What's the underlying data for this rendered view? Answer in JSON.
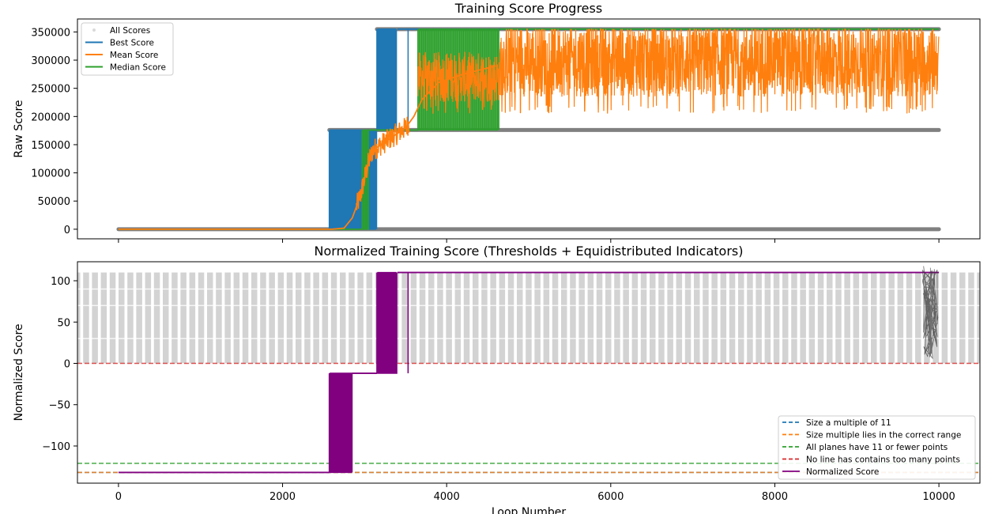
{
  "chart_data": [
    {
      "type": "line",
      "title": "Training Score Progress",
      "xlabel": "",
      "ylabel": "Raw Score",
      "xlim": [
        -500,
        10500
      ],
      "ylim": [
        -17000,
        373000
      ],
      "x_ticks": [
        0,
        2000,
        4000,
        6000,
        8000,
        10000
      ],
      "x_tick_labels_visible": false,
      "y_ticks": [
        0,
        50000,
        100000,
        150000,
        200000,
        250000,
        300000,
        350000
      ],
      "y_tick_labels": [
        "0",
        "50000",
        "100000",
        "150000",
        "200000",
        "250000",
        "300000",
        "350000"
      ],
      "grid": false,
      "legend_position": "top-left",
      "legend": [
        "All Scores",
        "Best Score",
        "Mean Score",
        "Median Score"
      ],
      "colors": {
        "all": "#808080",
        "best": "#1f77b4",
        "mean": "#ff7f0e",
        "median": "#2ca02c"
      },
      "series": [
        {
          "name": "All Scores",
          "style": "scatter",
          "levels": [
            0,
            176000,
            355000
          ],
          "x_range": [
            0,
            10000
          ]
        },
        {
          "name": "Best Score",
          "segments": [
            {
              "x": [
                0,
                2570
              ],
              "y": [
                0,
                0
              ]
            },
            {
              "x": [
                2570,
                3150
              ],
              "y": [
                176000,
                176000
              ],
              "oscillating_with": 0
            },
            {
              "x": [
                3150,
                3400
              ],
              "y": [
                355000,
                355000
              ],
              "oscillating_with": 176000
            },
            {
              "x": [
                3400,
                10000
              ],
              "y": [
                355000,
                355000
              ]
            }
          ]
        },
        {
          "name": "Mean Score",
          "x": [
            0,
            2600,
            2750,
            2850,
            2950,
            3050,
            3100,
            3200,
            3300,
            3400,
            3500,
            3600,
            3700,
            3900,
            4200,
            4600,
            5000,
            6000,
            7000,
            8000,
            9000,
            10000
          ],
          "y": [
            0,
            0,
            2000,
            20000,
            60000,
            120000,
            140000,
            150000,
            160000,
            170000,
            180000,
            200000,
            230000,
            260000,
            275000,
            290000,
            300000,
            300000,
            300000,
            300000,
            300000,
            300000
          ],
          "noise_band": [
            220000,
            355000
          ],
          "noise_from_x": 4650
        },
        {
          "name": "Median Score",
          "segments": [
            {
              "x": [
                0,
                2970
              ],
              "y": [
                0,
                0
              ]
            },
            {
              "x": [
                2970,
                3050
              ],
              "y": [
                176000,
                176000
              ],
              "oscillating_with": 0
            },
            {
              "x": [
                3050,
                3650
              ],
              "y": [
                176000,
                176000
              ]
            },
            {
              "x": [
                3650,
                4650
              ],
              "y": [
                355000,
                355000
              ],
              "oscillating_with": 176000
            },
            {
              "x": [
                4650,
                10000
              ],
              "y": [
                355000,
                355000
              ]
            }
          ]
        }
      ]
    },
    {
      "type": "line",
      "title": "Normalized Training Score (Thresholds + Equidistributed Indicators)",
      "xlabel": "Loop Number",
      "ylabel": "Normalized Score",
      "xlim": [
        -500,
        10500
      ],
      "ylim": [
        -145,
        123
      ],
      "x_ticks": [
        0,
        2000,
        4000,
        6000,
        8000,
        10000
      ],
      "x_tick_labels": [
        "0",
        "2000",
        "4000",
        "6000",
        "8000",
        "10000"
      ],
      "y_ticks": [
        -100,
        -50,
        0,
        50,
        100
      ],
      "y_tick_labels": [
        "−100",
        "−50",
        "0",
        "50",
        "100"
      ],
      "grid": false,
      "legend_position": "bottom-right",
      "legend": [
        "Size a multiple of 11",
        "Size multiple lies in the correct range",
        "All planes have 11 or fewer points",
        "No line has contains too many points",
        "Normalized Score"
      ],
      "thresholds": [
        {
          "name": "Size a multiple of 11",
          "y": -132,
          "color": "#1f77b4"
        },
        {
          "name": "Size multiple lies in the correct range",
          "y": -132,
          "color": "#ff7f0e"
        },
        {
          "name": "All planes have 11 or fewer points",
          "y": -121,
          "color": "#2ca02c"
        },
        {
          "name": "No line has contains too many points",
          "y": 0,
          "color": "#d62728"
        }
      ],
      "indicator_band": {
        "y_range": [
          0,
          110
        ],
        "color": "#d3d3d3"
      },
      "series": [
        {
          "name": "Normalized Score",
          "color": "#800080",
          "segments": [
            {
              "x": [
                0,
                2570
              ],
              "y": [
                -132,
                -132
              ]
            },
            {
              "x": [
                2570,
                2850
              ],
              "y": [
                -12,
                -12
              ],
              "oscillating_with": -132
            },
            {
              "x": [
                2850,
                3150
              ],
              "y": [
                -12,
                -12
              ]
            },
            {
              "x": [
                3150,
                3400
              ],
              "y": [
                110,
                110
              ],
              "oscillating_with": -12
            },
            {
              "x": [
                3400,
                10000
              ],
              "y": [
                110,
                110
              ]
            }
          ]
        }
      ]
    }
  ]
}
